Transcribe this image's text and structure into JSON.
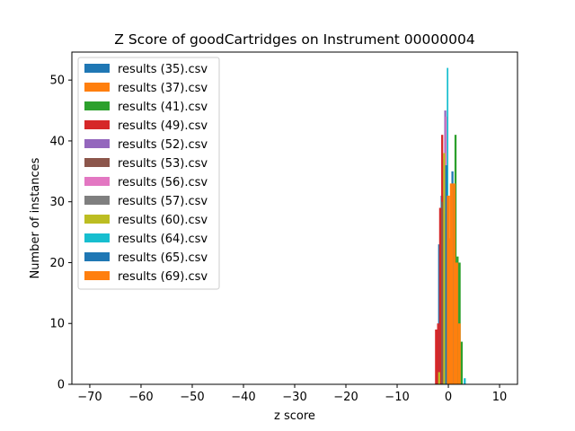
{
  "chart_data": {
    "type": "bar",
    "title": "Z Score of goodCartridges on Instrument 00000004",
    "xlabel": "z score",
    "ylabel": "Number of instances",
    "xlim": [
      -73.5,
      13.5
    ],
    "ylim": [
      0,
      54.6
    ],
    "xticks": [
      -70,
      -60,
      -50,
      -40,
      -30,
      -20,
      -10,
      0,
      10
    ],
    "xtick_labels": [
      "−70",
      "−60",
      "−50",
      "−40",
      "−30",
      "−20",
      "−10",
      "0",
      "10"
    ],
    "yticks": [
      0,
      10,
      20,
      30,
      40,
      50
    ],
    "ytick_labels": [
      "0",
      "10",
      "20",
      "30",
      "40",
      "50"
    ],
    "grid": false,
    "legend_position": "upper-left",
    "series": [
      {
        "name": "results (35).csv",
        "color": "#1f77b4",
        "bins": [
          {
            "x0": -2.0,
            "x1": -1.5,
            "value": 23
          },
          {
            "x0": -1.5,
            "x1": -1.0,
            "value": 31
          },
          {
            "x0": -1.0,
            "x1": -0.5,
            "value": 37
          }
        ]
      },
      {
        "name": "results (37).csv",
        "color": "#ff7f0e",
        "bins": [
          {
            "x0": -0.5,
            "x1": 0.0,
            "value": 6
          },
          {
            "x0": 0.0,
            "x1": 0.6,
            "value": 24
          },
          {
            "x0": 0.6,
            "x1": 1.2,
            "value": 28
          }
        ]
      },
      {
        "name": "results (41).csv",
        "color": "#2ca02c",
        "bins": [
          {
            "x0": 1.2,
            "x1": 1.6,
            "value": 41
          },
          {
            "x0": 1.6,
            "x1": 2.0,
            "value": 21
          },
          {
            "x0": 2.0,
            "x1": 2.4,
            "value": 20
          },
          {
            "x0": 2.4,
            "x1": 2.8,
            "value": 7
          }
        ]
      },
      {
        "name": "results (49).csv",
        "color": "#d62728",
        "bins": [
          {
            "x0": -2.6,
            "x1": -2.2,
            "value": 9
          },
          {
            "x0": -2.2,
            "x1": -1.8,
            "value": 10
          },
          {
            "x0": -1.8,
            "x1": -1.4,
            "value": 29
          },
          {
            "x0": -1.4,
            "x1": -1.0,
            "value": 41
          }
        ]
      },
      {
        "name": "results (52).csv",
        "color": "#9467bd",
        "bins": [
          {
            "x0": -0.8,
            "x1": -0.4,
            "value": 45
          }
        ]
      },
      {
        "name": "results (53).csv",
        "color": "#8c564b",
        "bins": [
          {
            "x0": -1.4,
            "x1": -1.0,
            "value": 30
          }
        ]
      },
      {
        "name": "results (56).csv",
        "color": "#e377c2",
        "bins": [
          {
            "x0": -0.6,
            "x1": -0.3,
            "value": 44
          }
        ]
      },
      {
        "name": "results (57).csv",
        "color": "#7f7f7f",
        "bins": [
          {
            "x0": -0.8,
            "x1": -0.4,
            "value": 28
          }
        ]
      },
      {
        "name": "results (60).csv",
        "color": "#bcbd22",
        "bins": [
          {
            "x0": -2.0,
            "x1": -1.6,
            "value": 2
          },
          {
            "x0": -1.0,
            "x1": -0.6,
            "value": 38
          }
        ]
      },
      {
        "name": "results (64).csv",
        "color": "#17becf",
        "bins": [
          {
            "x0": -0.3,
            "x1": 0.0,
            "value": 52
          },
          {
            "x0": 3.0,
            "x1": 3.4,
            "value": 1
          }
        ]
      },
      {
        "name": "results (65).csv",
        "color": "#1f77b4",
        "bins": [
          {
            "x0": -0.6,
            "x1": -0.2,
            "value": 36
          },
          {
            "x0": 0.6,
            "x1": 1.0,
            "value": 35
          }
        ]
      },
      {
        "name": "results (69).csv",
        "color": "#ff7f0e",
        "bins": [
          {
            "x0": -0.3,
            "x1": 0.3,
            "value": 31
          },
          {
            "x0": 0.3,
            "x1": 0.9,
            "value": 33
          },
          {
            "x0": 0.9,
            "x1": 1.4,
            "value": 33
          },
          {
            "x0": 1.4,
            "x1": 1.9,
            "value": 20
          },
          {
            "x0": 1.9,
            "x1": 2.4,
            "value": 10
          }
        ]
      }
    ]
  }
}
